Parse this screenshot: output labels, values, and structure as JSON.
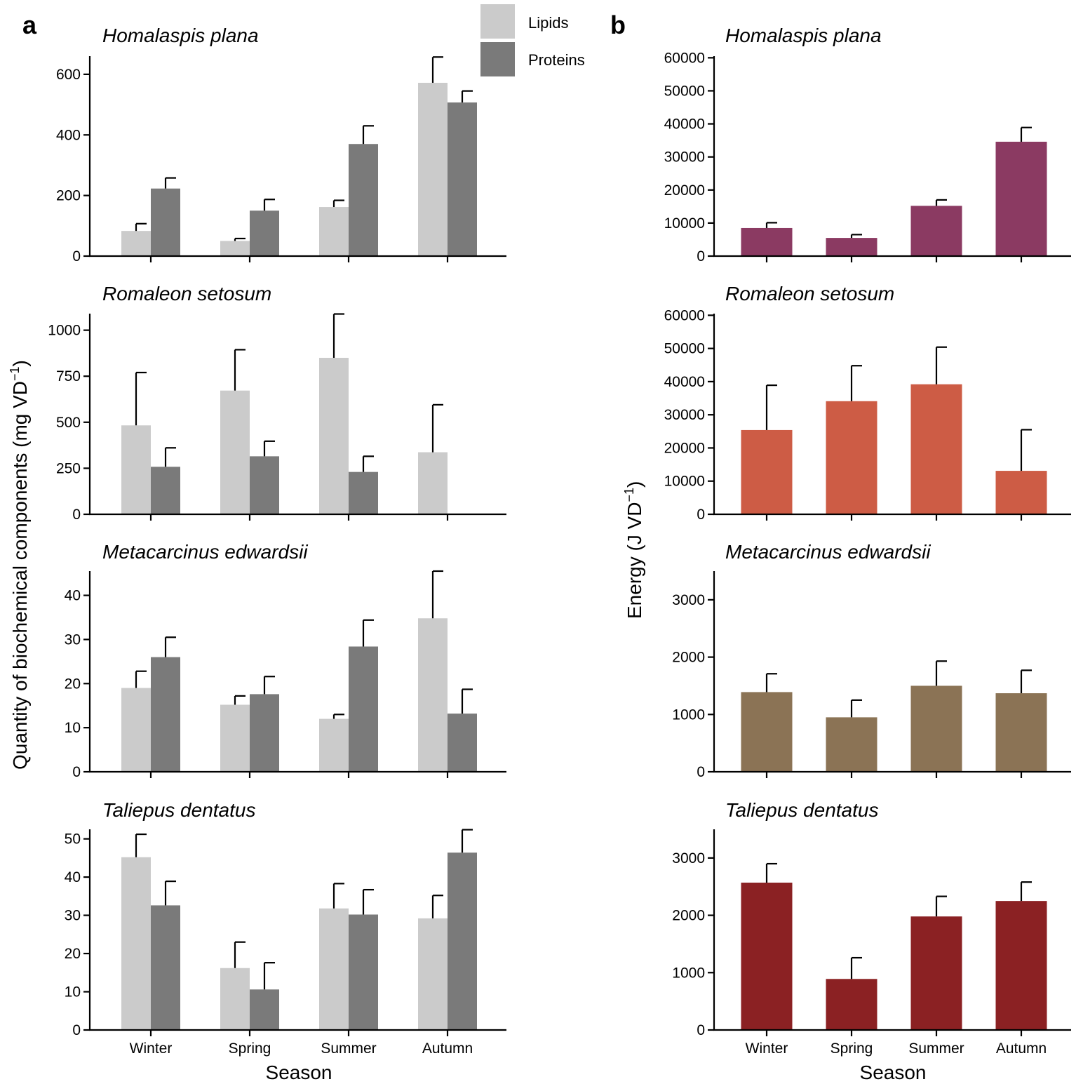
{
  "colors": {
    "lipids": "#cbcbcb",
    "proteins": "#7a7a7a",
    "energy": [
      "#8b3a62",
      "#cd5c45",
      "#8b7355",
      "#8b2123"
    ]
  },
  "legend": {
    "lipids": "Lipids",
    "proteins": "Proteins"
  },
  "panel_letters": {
    "a": "a",
    "b": "b"
  },
  "axis_titles": {
    "a_y": "Quantity of biochemical components (mg VD",
    "b_y": "Energy (J VD",
    "sup": "−1",
    "close": ")",
    "x": "Season"
  },
  "chart_data": [
    {
      "type": "bar",
      "panel": "a",
      "title": "Homalaspis plana",
      "categories": [
        "Winter",
        "Spring",
        "Summer",
        "Autumn"
      ],
      "ylim": [
        0,
        660
      ],
      "yticks": [
        0,
        200,
        400,
        600
      ],
      "series": [
        {
          "name": "Lipids",
          "values": [
            83,
            50,
            162,
            572
          ],
          "err": [
            24,
            8,
            22,
            85
          ]
        },
        {
          "name": "Proteins",
          "values": [
            223,
            150,
            370,
            507
          ],
          "err": [
            35,
            37,
            60,
            38
          ]
        }
      ]
    },
    {
      "type": "bar",
      "panel": "a",
      "title": "Romaleon setosum",
      "categories": [
        "Winter",
        "Spring",
        "Summer",
        "Autumn"
      ],
      "ylim": [
        0,
        1090
      ],
      "yticks": [
        0,
        250,
        500,
        750,
        1000
      ],
      "series": [
        {
          "name": "Lipids",
          "values": [
            483,
            672,
            850,
            337
          ],
          "err": [
            287,
            222,
            238,
            258
          ]
        },
        {
          "name": "Proteins",
          "values": [
            258,
            315,
            230,
            0
          ],
          "err": [
            103,
            82,
            85,
            0
          ]
        }
      ]
    },
    {
      "type": "bar",
      "panel": "a",
      "title": "Metacarcinus edwardsii",
      "categories": [
        "Winter",
        "Spring",
        "Summer",
        "Autumn"
      ],
      "ylim": [
        0,
        45.5
      ],
      "yticks": [
        0,
        10,
        20,
        30,
        40
      ],
      "series": [
        {
          "name": "Lipids",
          "values": [
            19,
            15.2,
            12,
            34.8
          ],
          "err": [
            3.8,
            2,
            1,
            10.7
          ]
        },
        {
          "name": "Proteins",
          "values": [
            26,
            17.6,
            28.4,
            13.2
          ],
          "err": [
            4.5,
            4,
            6,
            5.5
          ]
        }
      ]
    },
    {
      "type": "bar",
      "panel": "a",
      "title": "Taliepus dentatus",
      "categories": [
        "Winter",
        "Spring",
        "Summer",
        "Autumn"
      ],
      "ylim": [
        0,
        52.5
      ],
      "yticks": [
        0,
        10,
        20,
        30,
        40,
        50
      ],
      "series": [
        {
          "name": "Lipids",
          "values": [
            45.2,
            16.2,
            31.8,
            29.2
          ],
          "err": [
            6,
            6.8,
            6.5,
            6
          ]
        },
        {
          "name": "Proteins",
          "values": [
            32.6,
            10.6,
            30.2,
            46.4
          ],
          "err": [
            6.3,
            7,
            6.5,
            6
          ]
        }
      ]
    },
    {
      "type": "bar",
      "panel": "b",
      "title": "Homalaspis plana",
      "categories": [
        "Winter",
        "Spring",
        "Summer",
        "Autumn"
      ],
      "ylim": [
        0,
        60500
      ],
      "yticks": [
        0,
        10000,
        20000,
        30000,
        40000,
        50000,
        60000
      ],
      "series": [
        {
          "name": "Energy",
          "values": [
            8500,
            5500,
            15200,
            34600
          ],
          "err": [
            1600,
            1000,
            1800,
            4300
          ]
        }
      ]
    },
    {
      "type": "bar",
      "panel": "b",
      "title": "Romaleon setosum",
      "categories": [
        "Winter",
        "Spring",
        "Summer",
        "Autumn"
      ],
      "ylim": [
        0,
        60500
      ],
      "yticks": [
        0,
        10000,
        20000,
        30000,
        40000,
        50000,
        60000
      ],
      "series": [
        {
          "name": "Energy",
          "values": [
            25400,
            34100,
            39200,
            13100
          ],
          "err": [
            13500,
            10700,
            11200,
            12400
          ]
        }
      ]
    },
    {
      "type": "bar",
      "panel": "b",
      "title": "Metacarcinus edwardsii",
      "categories": [
        "Winter",
        "Spring",
        "Summer",
        "Autumn"
      ],
      "ylim": [
        0,
        3500
      ],
      "yticks": [
        0,
        1000,
        2000,
        3000
      ],
      "series": [
        {
          "name": "Energy",
          "values": [
            1390,
            950,
            1500,
            1370
          ],
          "err": [
            320,
            300,
            430,
            400
          ]
        }
      ]
    },
    {
      "type": "bar",
      "panel": "b",
      "title": "Taliepus dentatus",
      "categories": [
        "Winter",
        "Spring",
        "Summer",
        "Autumn"
      ],
      "ylim": [
        0,
        3500
      ],
      "yticks": [
        0,
        1000,
        2000,
        3000
      ],
      "series": [
        {
          "name": "Energy",
          "values": [
            2570,
            890,
            1980,
            2250
          ],
          "err": [
            330,
            370,
            350,
            330
          ]
        }
      ]
    }
  ]
}
